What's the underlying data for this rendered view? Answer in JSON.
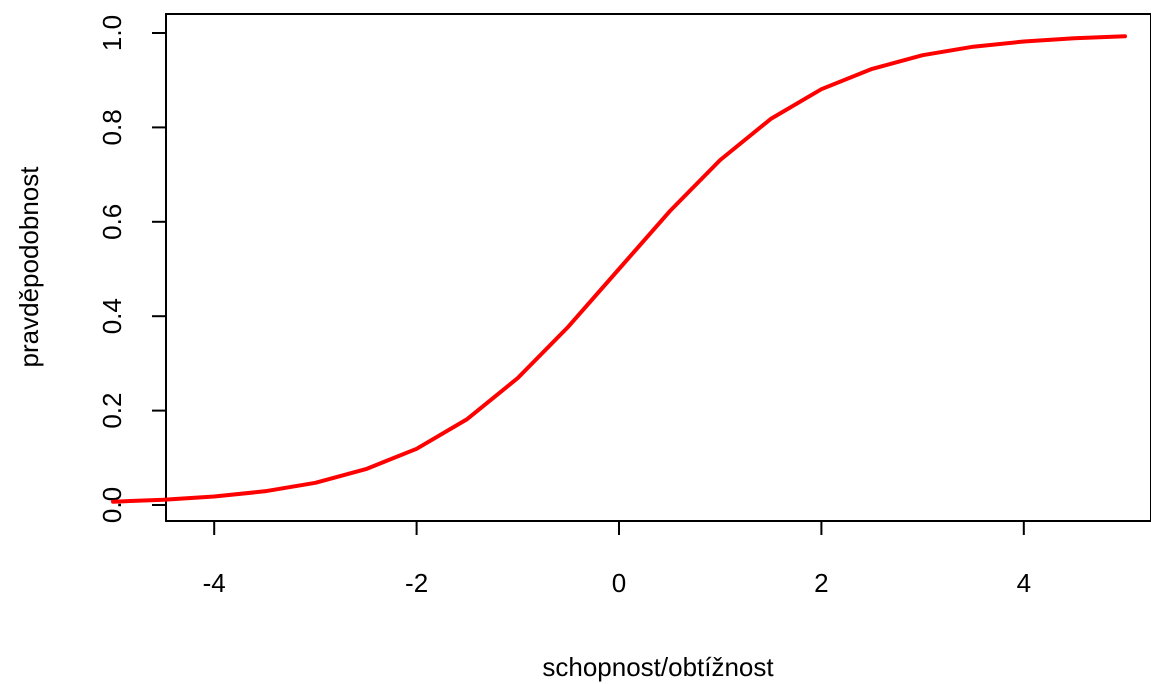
{
  "chart_data": {
    "type": "line",
    "title": "",
    "xlabel": "schopnost/obtížnost",
    "ylabel": "pravděpodobnost",
    "xlim": [
      -5,
      5
    ],
    "ylim": [
      0,
      1
    ],
    "x_ticks": [
      -4,
      -2,
      0,
      2,
      4
    ],
    "y_ticks": [
      0.0,
      0.2,
      0.4,
      0.6,
      0.8,
      1.0
    ],
    "x_tick_labels": [
      "-4",
      "-2",
      "0",
      "2",
      "4"
    ],
    "y_tick_labels": [
      "0.0",
      "0.2",
      "0.4",
      "0.6",
      "0.8",
      "1.0"
    ],
    "grid": false,
    "series": [
      {
        "color": "#ff0000",
        "x": [
          -5,
          -4.5,
          -4,
          -3.5,
          -3,
          -2.5,
          -2,
          -1.5,
          -1,
          -0.5,
          0,
          0.5,
          1,
          1.5,
          2,
          2.5,
          3,
          3.5,
          4,
          4.5,
          5
        ],
        "y": [
          0.007,
          0.011,
          0.018,
          0.029,
          0.047,
          0.076,
          0.119,
          0.182,
          0.269,
          0.378,
          0.5,
          0.622,
          0.731,
          0.818,
          0.881,
          0.924,
          0.953,
          0.971,
          0.982,
          0.989,
          0.993
        ]
      }
    ]
  }
}
